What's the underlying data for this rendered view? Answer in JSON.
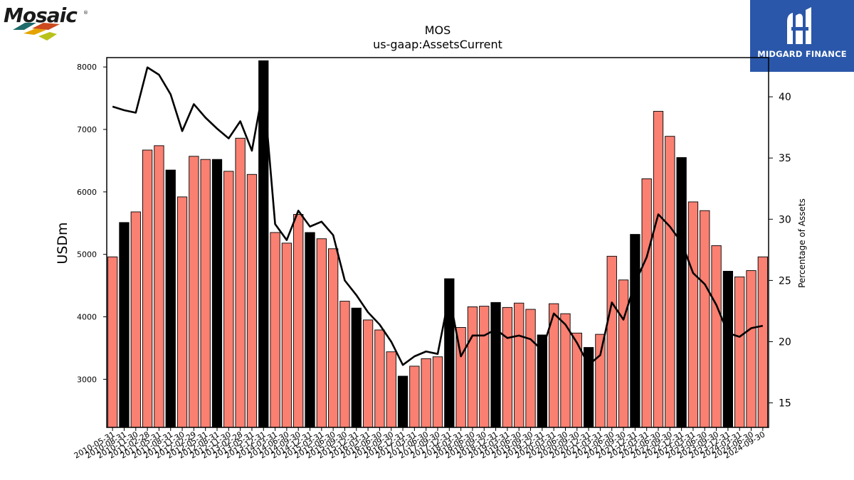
{
  "branding": {
    "left_logo_text": "Mosaic",
    "left_logo_mark": "®",
    "right_logo_text": "MIDGARD FINANCE",
    "right_bg_color": "#2a57a9"
  },
  "chart_data": {
    "type": "bar",
    "title": "MOS",
    "subtitle": "us-gaap:AssetsCurrent",
    "ylabel": "USDm",
    "y2label": "Percentage of Assets",
    "ylim": [
      2230,
      8150
    ],
    "y2lim": [
      13.0,
      43.2
    ],
    "yticks": [
      3000,
      4000,
      5000,
      6000,
      7000,
      8000
    ],
    "y2ticks": [
      15,
      20,
      25,
      30,
      35,
      40
    ],
    "bar_color": "#fa8072",
    "highlight_color": "#000000",
    "line_color": "#000000",
    "categories": [
      "2010-05-31",
      "2010-08-31",
      "2010-11-30",
      "2011-02-28",
      "2011-05-31",
      "2011-08-31",
      "2011-11-30",
      "2012-02-29",
      "2012-05-31",
      "2012-08-31",
      "2012-11-30",
      "2013-02-28",
      "2013-05-31",
      "2013-12-31",
      "2014-03-31",
      "2014-06-30",
      "2014-09-30",
      "2014-12-31",
      "2015-03-31",
      "2015-06-30",
      "2015-09-30",
      "2015-12-31",
      "2016-03-31",
      "2016-06-30",
      "2016-09-30",
      "2016-12-31",
      "2017-03-31",
      "2017-06-30",
      "2017-09-30",
      "2017-12-31",
      "2018-03-31",
      "2018-06-30",
      "2018-09-30",
      "2018-12-31",
      "2019-03-31",
      "2019-06-30",
      "2019-09-30",
      "2019-12-31",
      "2020-03-31",
      "2020-06-30",
      "2020-09-30",
      "2020-12-31",
      "2021-03-31",
      "2021-06-30",
      "2021-09-30",
      "2021-12-31",
      "2022-03-31",
      "2022-06-30",
      "2022-09-30",
      "2022-12-31",
      "2023-03-31",
      "2023-06-30",
      "2023-09-30",
      "2023-12-31",
      "2024-03-31",
      "2024-06-30",
      "2024-09-30"
    ],
    "series": [
      {
        "values": [
          4960,
          5510,
          5680,
          6670,
          6740,
          6350,
          5920,
          6570,
          6520,
          6520,
          6330,
          6860,
          6280,
          8100,
          5350,
          5180,
          5640,
          5350,
          5250,
          5090,
          4250,
          4140,
          3950,
          3790,
          3440,
          3050,
          3210,
          3330,
          3360,
          4610,
          3830,
          4160,
          4170,
          4230,
          4150,
          4220,
          4120,
          3710,
          4210,
          4050,
          3740,
          3510,
          3720,
          4970,
          4590,
          5320,
          6210,
          7290,
          6890,
          6550,
          5840,
          5700,
          5140,
          4730,
          4640,
          4740,
          4960
        ]
      },
      {
        "values": [
          39.2,
          38.9,
          38.7,
          42.4,
          41.8,
          40.2,
          37.2,
          39.4,
          38.3,
          37.4,
          36.6,
          38.0,
          35.6,
          40.8,
          29.6,
          28.3,
          30.7,
          29.4,
          29.8,
          28.7,
          25.0,
          23.8,
          22.4,
          21.4,
          20.0,
          18.1,
          18.8,
          19.2,
          19.0,
          23.8,
          18.8,
          20.5,
          20.5,
          21.0,
          20.3,
          20.5,
          20.2,
          19.3,
          22.3,
          21.4,
          19.9,
          18.1,
          18.9,
          23.2,
          21.8,
          24.8,
          26.9,
          30.4,
          29.4,
          28.1,
          25.6,
          24.7,
          23.0,
          20.7,
          20.4,
          21.1,
          21.3
        ]
      }
    ],
    "highlight_indices": [
      1,
      5,
      9,
      13,
      17,
      21,
      25,
      29,
      33,
      37,
      41,
      45,
      49,
      53
    ]
  }
}
